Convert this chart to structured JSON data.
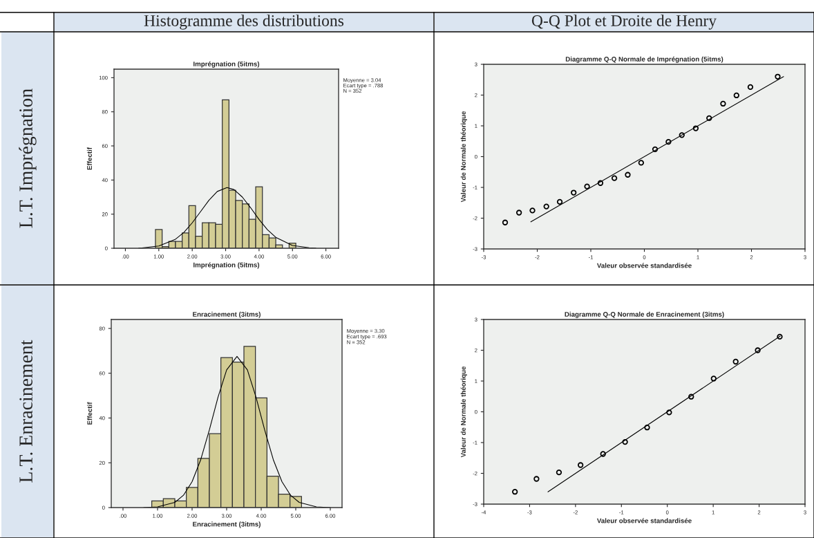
{
  "chart_data": [
    {
      "type": "other",
      "annotations": [
        "Histogramme des distributions",
        "Q-Q Plot et Droite de Henry",
        "L.T. Imprégnation",
        "L.T. Enracinement"
      ]
    },
    {
      "type": "histogram",
      "title": "Imprégnation (5itms)",
      "xlabel": "Imprégnation (5itms)",
      "ylabel": "Effectif",
      "color": "#d3cd95",
      "bins": [
        0.9,
        1.1,
        1.3,
        1.5,
        1.7,
        1.9,
        2.1,
        2.3,
        2.5,
        2.7,
        2.9,
        3.1,
        3.3,
        3.5,
        3.7,
        3.9,
        4.1,
        4.3,
        4.5,
        4.7,
        4.9,
        5.1
      ],
      "values": [
        11,
        1,
        4,
        4,
        9,
        25,
        7,
        15,
        15,
        14,
        87,
        34,
        28,
        26,
        17,
        36,
        8,
        6,
        2,
        0,
        3
      ],
      "series": [
        {
          "type": "line",
          "color": "#000000",
          "x": [
            0.4,
            0.5,
            1.0,
            1.5,
            1.75,
            2.0,
            2.25,
            2.5,
            2.75,
            3.04,
            3.25,
            3.5,
            3.75,
            4.0,
            4.25,
            4.5,
            5.0,
            5.5,
            5.7
          ],
          "values": [
            0.1,
            0.2,
            1.3,
            5.3,
            9.3,
            14.9,
            21.5,
            28.1,
            33.3,
            35.6,
            34.4,
            30.0,
            23.7,
            16.9,
            10.9,
            6.4,
            1.6,
            0.3,
            0.1
          ]
        }
      ],
      "xlim": [
        -0.34,
        6.38
      ],
      "ylim": [
        0,
        105
      ],
      "xticks": [
        {
          "value": 0,
          "label": ".00"
        },
        {
          "value": 1,
          "label": "1.00"
        },
        {
          "value": 2,
          "label": "2.00"
        },
        {
          "value": 3,
          "label": "3.00"
        },
        {
          "value": 4,
          "label": "4.00"
        },
        {
          "value": 5,
          "label": "5.00"
        },
        {
          "value": 6,
          "label": "6.00"
        }
      ],
      "yticks": [
        0,
        20,
        40,
        60,
        80,
        100
      ],
      "annotations": [
        "Moyenne = 3.04",
        "Ecart type = .788",
        "N = 352"
      ]
    },
    {
      "type": "scatter",
      "title": "Diagramme Q-Q Normale de Imprégnation (5itms)",
      "xlabel": "Valeur observée standardisée",
      "ylabel": "Valeur de Normale théorique",
      "series": [
        {
          "type": "scatter",
          "marker": "circle",
          "color": "#000000",
          "x": [
            -2.6,
            -2.34,
            -2.09,
            -1.83,
            -1.58,
            -1.32,
            -1.07,
            -0.82,
            -0.56,
            -0.31,
            -0.06,
            0.2,
            0.45,
            0.7,
            0.96,
            1.21,
            1.47,
            1.72,
            1.98,
            2.49
          ],
          "values": [
            -2.14,
            -1.82,
            -1.75,
            -1.62,
            -1.47,
            -1.17,
            -0.97,
            -0.86,
            -0.7,
            -0.59,
            -0.2,
            0.24,
            0.48,
            0.7,
            0.92,
            1.25,
            1.72,
            1.99,
            2.26,
            2.6
          ]
        },
        {
          "type": "line",
          "color": "#000000",
          "x": [
            -2.12,
            2.6
          ],
          "values": [
            -2.12,
            2.6
          ]
        }
      ],
      "xlim": [
        -3,
        3
      ],
      "ylim": [
        -3,
        3
      ],
      "xticks": [
        -3,
        -2,
        -1,
        0,
        1,
        2,
        3
      ],
      "yticks": [
        -3,
        -2,
        -1,
        0,
        1,
        2,
        3
      ]
    },
    {
      "type": "histogram",
      "title": "Enracinement (3itms)",
      "xlabel": "Enracinement (3itms)",
      "ylabel": "Effectif",
      "color": "#d3cd95",
      "bins": [
        0.833,
        1.167,
        1.5,
        1.833,
        2.167,
        2.5,
        2.833,
        3.167,
        3.5,
        3.833,
        4.167,
        4.5,
        4.833,
        5.167
      ],
      "values": [
        3,
        4,
        3,
        9,
        22,
        33,
        67,
        65,
        72,
        49,
        14,
        6,
        5
      ],
      "series": [
        {
          "type": "line",
          "color": "#000000",
          "x": [
            0.6,
            1.0,
            1.5,
            1.75,
            2.0,
            2.25,
            2.5,
            2.75,
            3.0,
            3.3,
            3.6,
            3.85,
            4.1,
            4.35,
            4.6,
            4.85,
            5.1,
            5.6,
            6.0
          ],
          "values": [
            0.0,
            0.3,
            2.3,
            5.5,
            11.6,
            21.4,
            34.7,
            49.3,
            61.5,
            67.5,
            61.5,
            49.3,
            34.7,
            21.4,
            11.6,
            5.5,
            2.3,
            0.3,
            0.0
          ]
        }
      ],
      "xlim": [
        -0.34,
        6.34
      ],
      "ylim": [
        0,
        84
      ],
      "xticks": [
        {
          "value": 0,
          "label": ".00"
        },
        {
          "value": 1,
          "label": "1.00"
        },
        {
          "value": 2,
          "label": "2.00"
        },
        {
          "value": 3,
          "label": "3.00"
        },
        {
          "value": 4,
          "label": "4.00"
        },
        {
          "value": 5,
          "label": "5.00"
        },
        {
          "value": 6,
          "label": "6.00"
        }
      ],
      "yticks": [
        0,
        20,
        40,
        60,
        80
      ],
      "annotations": [
        "Moyenne = 3.30",
        "Ecart type = .693",
        "N = 352"
      ]
    },
    {
      "type": "scatter",
      "title": "Diagramme Q-Q Normale de Enracinement (3itms)",
      "xlabel": "Valeur observée standardisée",
      "ylabel": "Valeur de Normale théorique",
      "series": [
        {
          "type": "scatter",
          "marker": "circle",
          "color": "#000000",
          "x": [
            -3.32,
            -2.85,
            -2.36,
            -1.89,
            -1.4,
            -0.92,
            -0.44,
            0.04,
            0.52,
            1.01,
            1.49,
            1.97,
            2.45
          ],
          "values": [
            -2.6,
            -2.18,
            -1.97,
            -1.73,
            -1.37,
            -0.98,
            -0.51,
            -0.02,
            0.49,
            1.08,
            1.63,
            2.0,
            2.44
          ]
        },
        {
          "type": "line",
          "color": "#000000",
          "x": [
            -2.6,
            2.46
          ],
          "values": [
            -2.6,
            2.46
          ]
        }
      ],
      "xlim": [
        -4,
        3
      ],
      "ylim": [
        -3,
        3
      ],
      "xticks": [
        -4,
        -3,
        -2,
        -1,
        0,
        1,
        2,
        3
      ],
      "yticks": [
        -3,
        -2,
        -1,
        0,
        1,
        2,
        3
      ]
    }
  ]
}
